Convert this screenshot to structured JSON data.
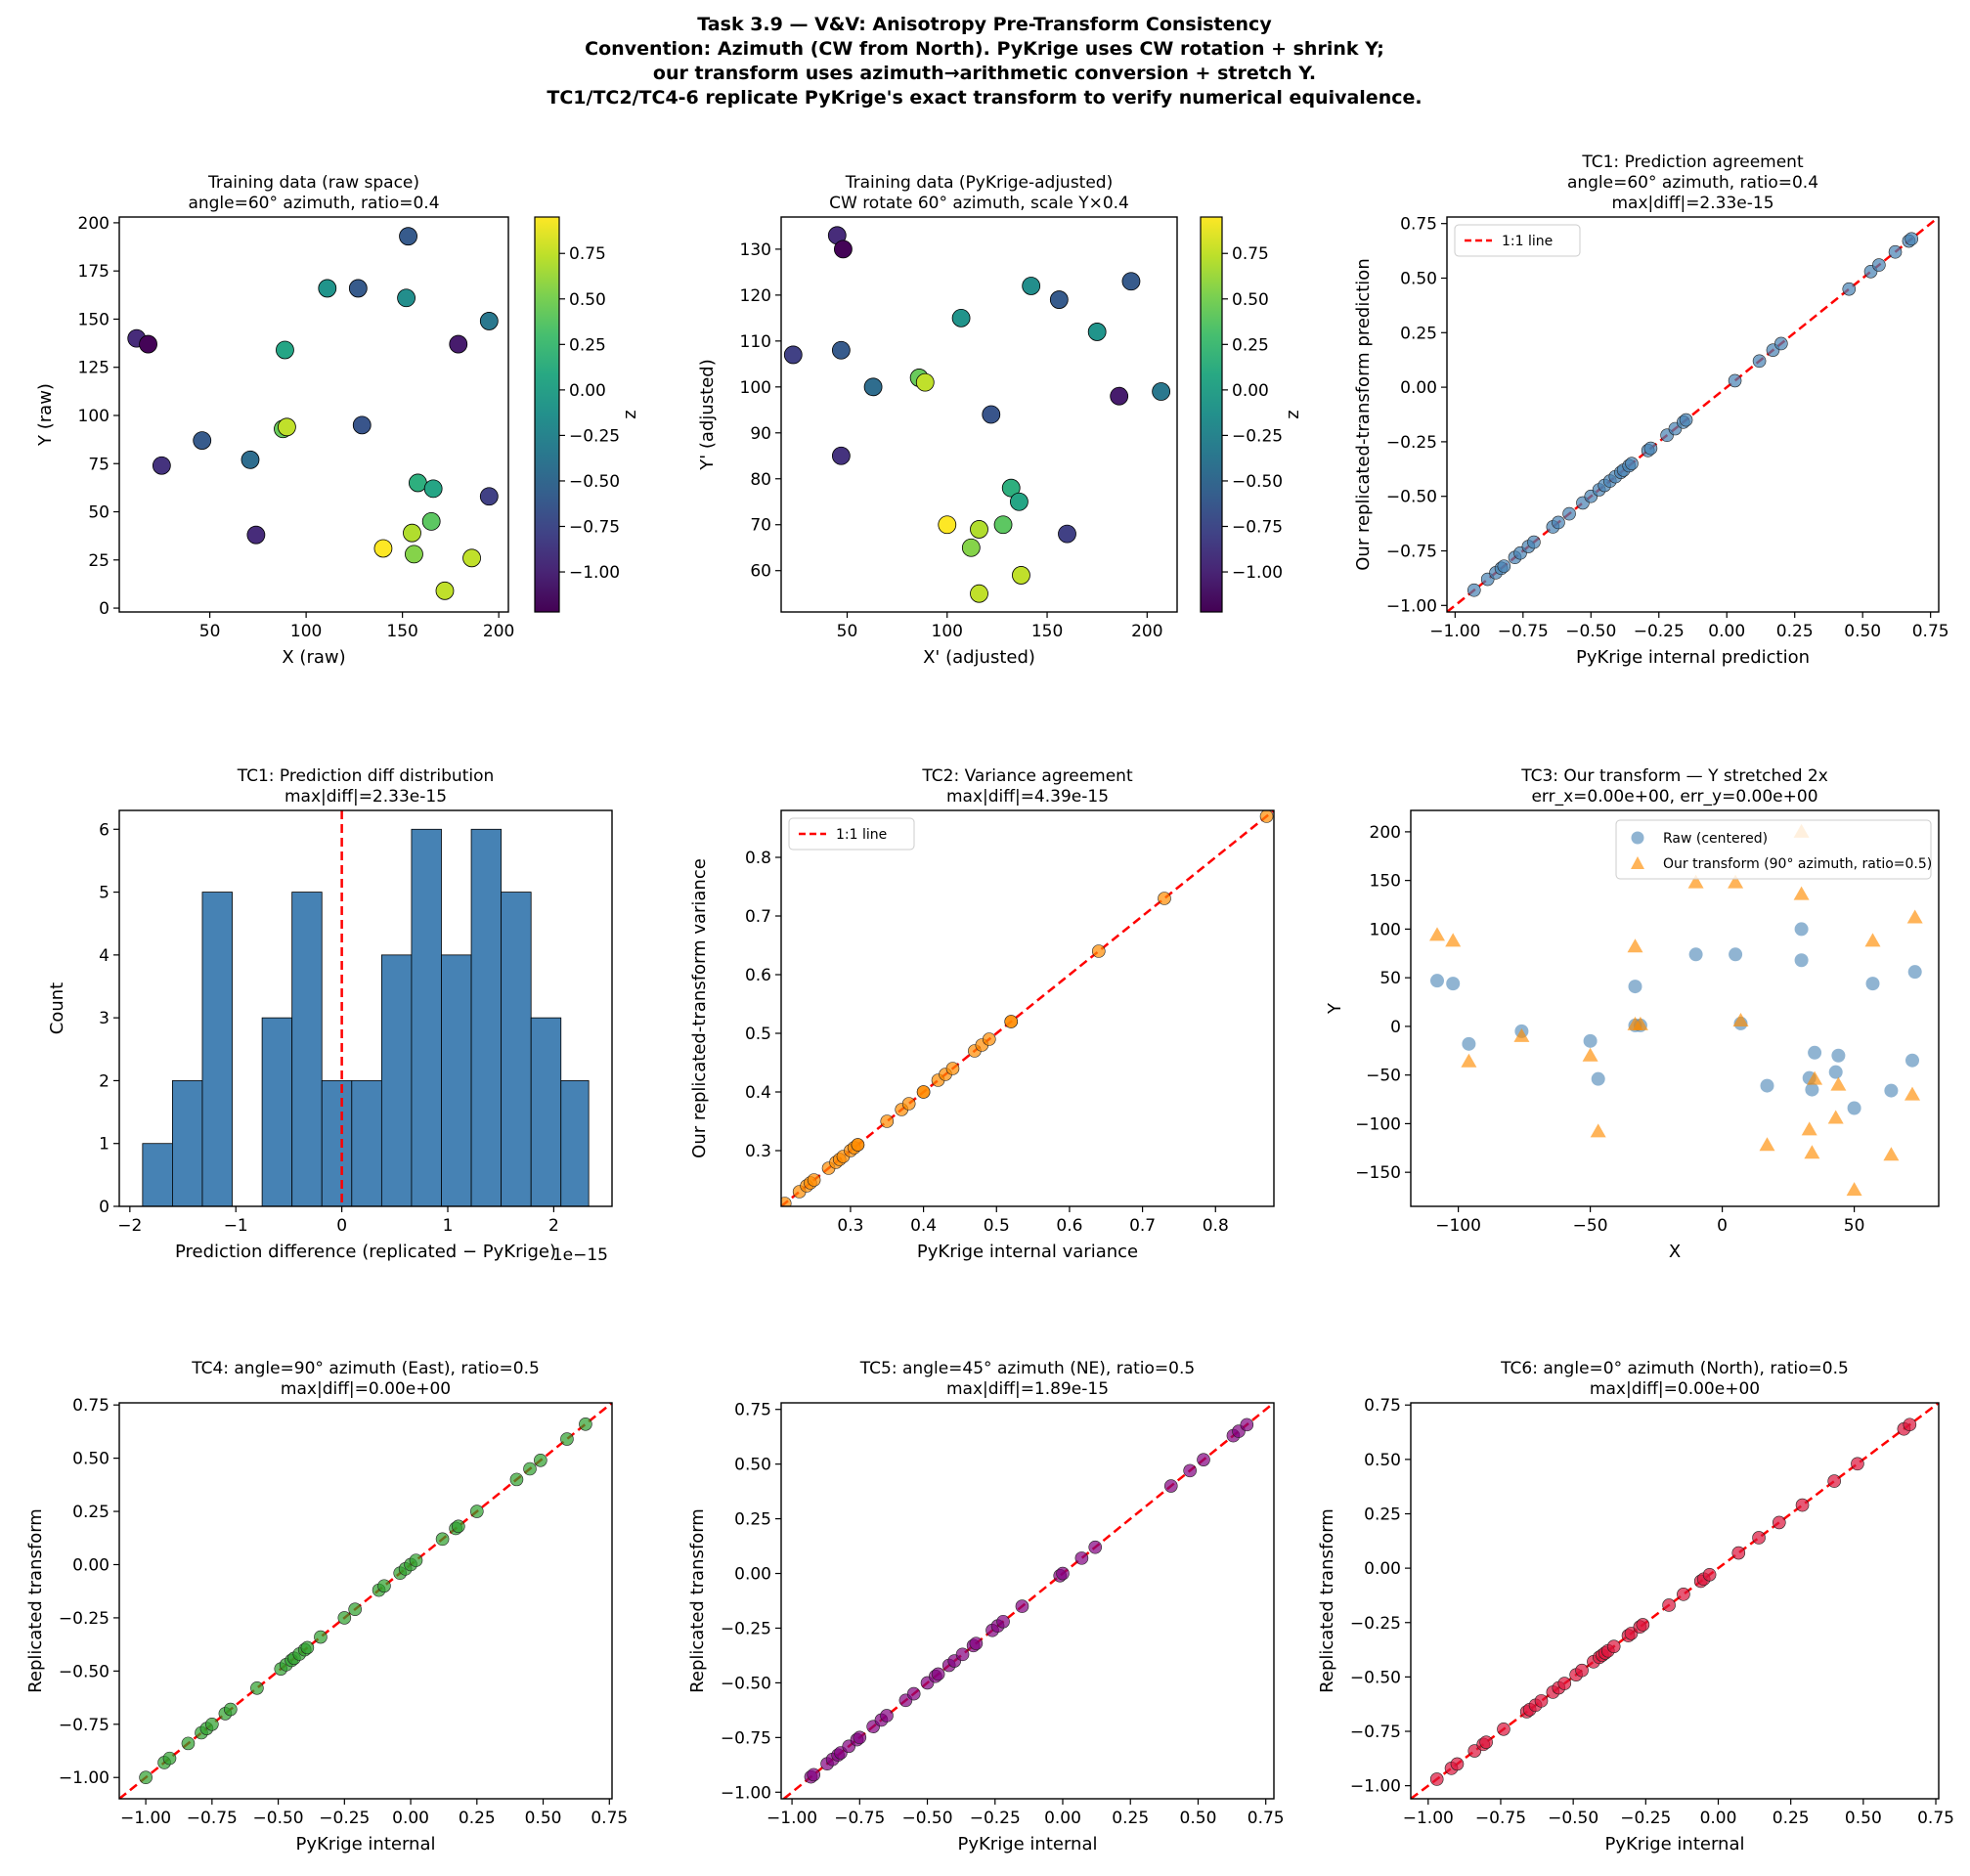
{
  "suptitle": [
    "Task 3.9 — V&V: Anisotropy Pre-Transform Consistency",
    "Convention: Azimuth (CW from North). PyKrige uses CW rotation + shrink Y;",
    "our transform uses azimuth→arithmetic conversion + stretch Y.",
    "TC1/TC2/TC4-6 replicate PyKrige's exact transform to verify numerical equivalence."
  ],
  "chart_data": [
    {
      "id": "p1",
      "type": "scatter",
      "title": [
        "Training data (raw space)",
        "angle=60° azimuth, ratio=0.4"
      ],
      "xlabel": "X (raw)",
      "ylabel": "Y (raw)",
      "xlim": [
        3,
        205
      ],
      "ylim": [
        -2,
        203
      ],
      "xticks": [
        50,
        100,
        150,
        200
      ],
      "yticks": [
        0,
        25,
        50,
        75,
        100,
        125,
        150,
        175,
        200
      ],
      "xdec": 0,
      "ydec": 0,
      "colorbar": {
        "label": "z",
        "range": [
          -1.22,
          0.95
        ],
        "ticks": [
          -1.0,
          -0.75,
          -0.5,
          -0.25,
          0.0,
          0.25,
          0.5,
          0.75
        ],
        "cmap": "viridis"
      },
      "points": [
        [
          12,
          140,
          -0.95
        ],
        [
          18,
          137,
          -1.2
        ],
        [
          25,
          74,
          -0.9
        ],
        [
          46,
          87,
          -0.6
        ],
        [
          71,
          77,
          -0.45
        ],
        [
          74,
          38,
          -0.95
        ],
        [
          88,
          93,
          0.45
        ],
        [
          90,
          94,
          0.75
        ],
        [
          89,
          134,
          0.05
        ],
        [
          111,
          166,
          -0.1
        ],
        [
          127,
          166,
          -0.6
        ],
        [
          129,
          95,
          -0.65
        ],
        [
          152,
          161,
          -0.15
        ],
        [
          153,
          193,
          -0.6
        ],
        [
          158,
          65,
          0.15
        ],
        [
          166,
          62,
          0.05
        ],
        [
          179,
          137,
          -1.05
        ],
        [
          195,
          149,
          -0.35
        ],
        [
          195,
          58,
          -0.8
        ],
        [
          165,
          45,
          0.4
        ],
        [
          155,
          39,
          0.7
        ],
        [
          156,
          28,
          0.55
        ],
        [
          140,
          31,
          0.95
        ],
        [
          186,
          26,
          0.75
        ],
        [
          172,
          9,
          0.75
        ]
      ]
    },
    {
      "id": "p2",
      "type": "scatter",
      "title": [
        "Training data (PyKrige-adjusted)",
        "CW rotate 60° azimuth, scale Y×0.4"
      ],
      "xlabel": "X' (adjusted)",
      "ylabel": "Y' (adjusted)",
      "xlim": [
        17,
        215
      ],
      "ylim": [
        51,
        137
      ],
      "xticks": [
        50,
        100,
        150,
        200
      ],
      "yticks": [
        60,
        70,
        80,
        90,
        100,
        110,
        120,
        130
      ],
      "xdec": 0,
      "ydec": 0,
      "colorbar": {
        "label": "z",
        "range": [
          -1.22,
          0.95
        ],
        "ticks": [
          -1.0,
          -0.75,
          -0.5,
          -0.25,
          0.0,
          0.25,
          0.5,
          0.75
        ],
        "cmap": "viridis"
      },
      "points": [
        [
          45,
          133,
          -0.95
        ],
        [
          48,
          130,
          -1.2
        ],
        [
          23,
          107,
          -0.8
        ],
        [
          47,
          108,
          -0.6
        ],
        [
          63,
          100,
          -0.45
        ],
        [
          47,
          85,
          -0.9
        ],
        [
          86,
          102,
          0.45
        ],
        [
          89,
          101,
          0.75
        ],
        [
          107,
          115,
          -0.1
        ],
        [
          142,
          122,
          -0.15
        ],
        [
          156,
          119,
          -0.6
        ],
        [
          192,
          123,
          -0.6
        ],
        [
          175,
          112,
          -0.1
        ],
        [
          122,
          94,
          -0.65
        ],
        [
          186,
          98,
          -1.05
        ],
        [
          207,
          99,
          -0.35
        ],
        [
          100,
          70,
          0.95
        ],
        [
          112,
          65,
          0.55
        ],
        [
          116,
          69,
          0.7
        ],
        [
          116,
          55,
          0.75
        ],
        [
          128,
          70,
          0.4
        ],
        [
          132,
          78,
          0.15
        ],
        [
          136,
          75,
          0.05
        ],
        [
          137,
          59,
          0.75
        ],
        [
          160,
          68,
          -0.8
        ]
      ]
    },
    {
      "id": "tc1",
      "type": "scatter",
      "title": [
        "TC1: Prediction agreement",
        "angle=60° azimuth, ratio=0.4",
        "max|diff|=2.33e-15"
      ],
      "xlabel": "PyKrige internal prediction",
      "ylabel": "Our replicated-transform prediction",
      "xlim": [
        -1.03,
        0.78
      ],
      "ylim": [
        -1.03,
        0.78
      ],
      "xticks": [
        -1.0,
        -0.75,
        -0.5,
        -0.25,
        0.0,
        0.25,
        0.5,
        0.75
      ],
      "yticks": [
        -1.0,
        -0.75,
        -0.5,
        -0.25,
        0.0,
        0.25,
        0.5,
        0.75
      ],
      "xdec": 2,
      "ydec": 2,
      "point_color": "#4682b4",
      "identity_line": {
        "color": "#ff0000",
        "label": "1:1 line"
      },
      "values": [
        -0.93,
        -0.88,
        -0.85,
        -0.83,
        -0.82,
        -0.78,
        -0.76,
        -0.73,
        -0.71,
        -0.64,
        -0.62,
        -0.58,
        -0.53,
        -0.5,
        -0.47,
        -0.45,
        -0.43,
        -0.41,
        -0.39,
        -0.38,
        -0.36,
        -0.35,
        -0.29,
        -0.28,
        -0.22,
        -0.19,
        -0.16,
        -0.15,
        0.03,
        0.12,
        0.17,
        0.2,
        0.45,
        0.53,
        0.56,
        0.62,
        0.67,
        0.68
      ]
    },
    {
      "id": "hist",
      "type": "bar",
      "title": [
        "TC1: Prediction diff distribution",
        "max|diff|=2.33e-15"
      ],
      "xlabel": "Prediction difference (replicated − PyKrige)",
      "ylabel": "Count",
      "offset_text": "1e−15",
      "xlim": [
        -2.1,
        2.55
      ],
      "ylim": [
        0,
        6.3
      ],
      "xticks": [
        -2,
        -1,
        0,
        1,
        2
      ],
      "yticks": [
        0,
        1,
        2,
        3,
        4,
        5,
        6
      ],
      "xdec": 0,
      "ydec": 0,
      "bar_color": "#4682b4",
      "vline": {
        "x": 0,
        "color": "#ff0000"
      },
      "bin_edges": [
        -1.88,
        -1.598,
        -1.316,
        -1.034,
        -0.752,
        -0.47,
        -0.188,
        0.094,
        0.376,
        0.658,
        0.94,
        1.222,
        1.504,
        1.786,
        2.068,
        2.33
      ],
      "counts": [
        1,
        2,
        5,
        0,
        3,
        5,
        2,
        2,
        4,
        6,
        4,
        6,
        5,
        3,
        2
      ]
    },
    {
      "id": "tc2",
      "type": "scatter",
      "title": [
        "TC2: Variance agreement",
        "max|diff|=4.39e-15"
      ],
      "xlabel": "PyKrige internal variance",
      "ylabel": "Our replicated-transform variance",
      "xlim": [
        0.205,
        0.88
      ],
      "ylim": [
        0.205,
        0.88
      ],
      "xticks": [
        0.3,
        0.4,
        0.5,
        0.6,
        0.7,
        0.8
      ],
      "yticks": [
        0.3,
        0.4,
        0.5,
        0.6,
        0.7,
        0.8
      ],
      "xdec": 1,
      "ydec": 1,
      "point_color": "#ff8c00",
      "identity_line": {
        "color": "#ff0000",
        "label": "1:1 line"
      },
      "values": [
        0.21,
        0.23,
        0.24,
        0.245,
        0.25,
        0.27,
        0.28,
        0.285,
        0.29,
        0.3,
        0.305,
        0.31,
        0.31,
        0.35,
        0.37,
        0.38,
        0.4,
        0.4,
        0.42,
        0.43,
        0.44,
        0.47,
        0.48,
        0.49,
        0.52,
        0.52,
        0.64,
        0.73,
        0.87
      ]
    },
    {
      "id": "tc3",
      "type": "scatter",
      "title": [
        "TC3: Our transform — Y stretched 2x",
        "err_x=0.00e+00, err_y=0.00e+00"
      ],
      "xlabel": "X",
      "ylabel": "Y",
      "xlim": [
        -118,
        82
      ],
      "ylim": [
        -185,
        222
      ],
      "xticks": [
        -100,
        -50,
        0,
        50
      ],
      "yticks": [
        -150,
        -100,
        -50,
        0,
        50,
        100,
        150,
        200
      ],
      "xdec": 0,
      "ydec": 0,
      "series": [
        {
          "name": "Raw (centered)",
          "marker": "circle",
          "color": "#4682b4",
          "points": [
            [
              -108,
              47
            ],
            [
              -102,
              44
            ],
            [
              -96,
              -18
            ],
            [
              -76,
              -5
            ],
            [
              -50,
              -15
            ],
            [
              -47,
              -54
            ],
            [
              -33,
              41
            ],
            [
              -33,
              1
            ],
            [
              -31,
              1
            ],
            [
              -10,
              74
            ],
            [
              5,
              74
            ],
            [
              7,
              3
            ],
            [
              17,
              -61
            ],
            [
              30,
              100
            ],
            [
              30,
              68
            ],
            [
              33,
              -53
            ],
            [
              34,
              -65
            ],
            [
              35,
              -27
            ],
            [
              43,
              -47
            ],
            [
              44,
              -30
            ],
            [
              50,
              -84
            ],
            [
              57,
              44
            ],
            [
              64,
              -66
            ],
            [
              72,
              -35
            ],
            [
              73,
              56
            ]
          ]
        },
        {
          "name": "Our transform (90° azimuth, ratio=0.5)",
          "marker": "triangle",
          "color": "#ff8c00",
          "points": [
            [
              -108,
              94
            ],
            [
              -102,
              88
            ],
            [
              -96,
              -36
            ],
            [
              -76,
              -10
            ],
            [
              -50,
              -30
            ],
            [
              -47,
              -108
            ],
            [
              -33,
              82
            ],
            [
              -33,
              2
            ],
            [
              -31,
              2
            ],
            [
              -10,
              148
            ],
            [
              5,
              148
            ],
            [
              7,
              6
            ],
            [
              17,
              -122
            ],
            [
              30,
              200
            ],
            [
              30,
              136
            ],
            [
              33,
              -106
            ],
            [
              34,
              -130
            ],
            [
              35,
              -54
            ],
            [
              43,
              -94
            ],
            [
              44,
              -60
            ],
            [
              50,
              -168
            ],
            [
              57,
              88
            ],
            [
              64,
              -132
            ],
            [
              72,
              -70
            ],
            [
              73,
              112
            ]
          ]
        }
      ]
    },
    {
      "id": "tc4",
      "type": "scatter",
      "title": [
        "TC4: angle=90° azimuth (East), ratio=0.5",
        "max|diff|=0.00e+00"
      ],
      "xlabel": "PyKrige internal",
      "ylabel": "Replicated transform",
      "xlim": [
        -1.1,
        0.76
      ],
      "ylim": [
        -1.1,
        0.76
      ],
      "xticks": [
        -1.0,
        -0.75,
        -0.5,
        -0.25,
        0.0,
        0.25,
        0.5,
        0.75
      ],
      "yticks": [
        -1.0,
        -0.75,
        -0.5,
        -0.25,
        0.0,
        0.25,
        0.5,
        0.75
      ],
      "xdec": 2,
      "ydec": 2,
      "point_color": "#2ca02c",
      "identity_line": {
        "color": "#ff0000"
      },
      "values": [
        -1.0,
        -0.93,
        -0.91,
        -0.84,
        -0.79,
        -0.77,
        -0.75,
        -0.7,
        -0.68,
        -0.58,
        -0.49,
        -0.47,
        -0.45,
        -0.44,
        -0.42,
        -0.4,
        -0.39,
        -0.34,
        -0.25,
        -0.21,
        -0.12,
        -0.1,
        -0.04,
        -0.02,
        0.0,
        0.02,
        0.12,
        0.17,
        0.18,
        0.25,
        0.4,
        0.45,
        0.49,
        0.59,
        0.66
      ]
    },
    {
      "id": "tc5",
      "type": "scatter",
      "title": [
        "TC5: angle=45° azimuth (NE), ratio=0.5",
        "max|diff|=1.89e-15"
      ],
      "xlabel": "PyKrige internal",
      "ylabel": "Replicated transform",
      "xlim": [
        -1.04,
        0.78
      ],
      "ylim": [
        -1.03,
        0.78
      ],
      "xticks": [
        -1.0,
        -0.75,
        -0.5,
        -0.25,
        0.0,
        0.25,
        0.5,
        0.75
      ],
      "yticks": [
        -1.0,
        -0.75,
        -0.5,
        -0.25,
        0.0,
        0.25,
        0.5,
        0.75
      ],
      "xdec": 2,
      "ydec": 2,
      "point_color": "#800080",
      "identity_line": {
        "color": "#ff0000"
      },
      "values": [
        -0.93,
        -0.92,
        -0.87,
        -0.85,
        -0.83,
        -0.82,
        -0.79,
        -0.76,
        -0.75,
        -0.7,
        -0.67,
        -0.65,
        -0.58,
        -0.55,
        -0.5,
        -0.47,
        -0.46,
        -0.42,
        -0.4,
        -0.37,
        -0.33,
        -0.32,
        -0.26,
        -0.24,
        -0.22,
        -0.15,
        -0.01,
        0.0,
        0.07,
        0.12,
        0.4,
        0.47,
        0.52,
        0.63,
        0.65,
        0.68
      ]
    },
    {
      "id": "tc6",
      "type": "scatter",
      "title": [
        "TC6: angle=0° azimuth (North), ratio=0.5",
        "max|diff|=0.00e+00"
      ],
      "xlabel": "PyKrige internal",
      "ylabel": "Replicated transform",
      "xlim": [
        -1.06,
        0.76
      ],
      "ylim": [
        -1.06,
        0.76
      ],
      "xticks": [
        -1.0,
        -0.75,
        -0.5,
        -0.25,
        0.0,
        0.25,
        0.5,
        0.75
      ],
      "yticks": [
        -1.0,
        -0.75,
        -0.5,
        -0.25,
        0.0,
        0.25,
        0.5,
        0.75
      ],
      "xdec": 2,
      "ydec": 2,
      "point_color": "#dc143c",
      "identity_line": {
        "color": "#ff0000"
      },
      "values": [
        -0.97,
        -0.92,
        -0.9,
        -0.84,
        -0.81,
        -0.8,
        -0.74,
        -0.66,
        -0.65,
        -0.63,
        -0.61,
        -0.57,
        -0.55,
        -0.53,
        -0.49,
        -0.47,
        -0.43,
        -0.41,
        -0.4,
        -0.39,
        -0.38,
        -0.36,
        -0.31,
        -0.3,
        -0.27,
        -0.26,
        -0.17,
        -0.12,
        -0.06,
        -0.05,
        -0.03,
        0.07,
        0.14,
        0.21,
        0.29,
        0.4,
        0.48,
        0.64,
        0.66
      ]
    }
  ]
}
